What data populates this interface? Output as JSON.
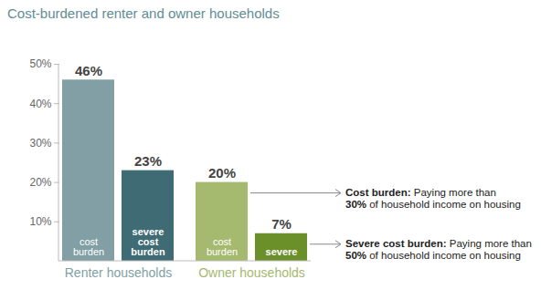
{
  "chart_data": {
    "type": "bar",
    "title": "Cost-burdened renter and owner households",
    "categories": [
      "Renter households",
      "Owner households"
    ],
    "series": [
      {
        "values": [
          46,
          20
        ],
        "value_labels": [
          "46%",
          "20%"
        ],
        "bar_labels": [
          "cost burden",
          "cost burden"
        ],
        "colors": [
          "#819fa4",
          "#a5b96f"
        ]
      },
      {
        "values": [
          23,
          7
        ],
        "value_labels": [
          "23%",
          "7%"
        ],
        "bar_labels": [
          "severe cost burden",
          "severe"
        ],
        "colors": [
          "#3e6b74",
          "#6b9029"
        ]
      }
    ],
    "ylim": [
      0,
      50
    ],
    "yticks": [
      {
        "value": 10,
        "label": "10%"
      },
      {
        "value": 20,
        "label": "20%"
      },
      {
        "value": 30,
        "label": "30%"
      },
      {
        "value": 40,
        "label": "40%"
      },
      {
        "value": 50,
        "label": "50%"
      }
    ],
    "grid": false,
    "data_labels": true,
    "annotations": [
      {
        "lines": [
          "Cost burden: Paying more than",
          "30% of household income on housing"
        ],
        "bold": [
          "Cost burden:",
          "30%"
        ]
      },
      {
        "lines": [
          "Severe cost burden: Paying more than",
          "50% of household income on housing"
        ],
        "bold": [
          "Severe cost burden:",
          "50%"
        ]
      }
    ]
  }
}
